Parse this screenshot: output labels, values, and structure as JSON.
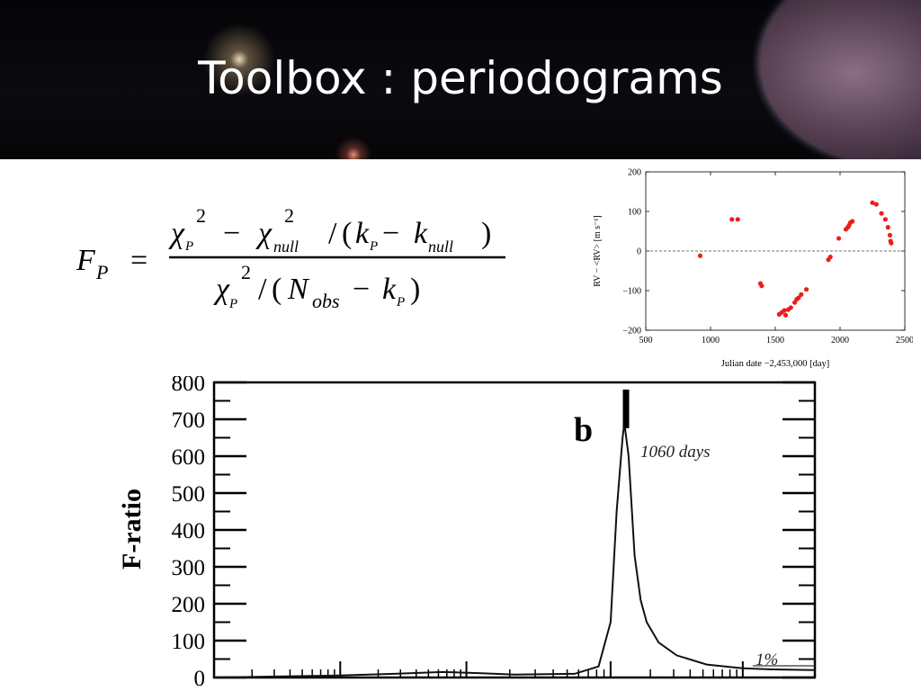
{
  "slide": {
    "title": "Toolbox : periodograms"
  },
  "formula": {
    "lhs_main": "F",
    "lhs_sub": "P",
    "eq": "=",
    "chi": "χ",
    "sq": "2",
    "sub_p": "P",
    "sub_null": "null",
    "minus": "−",
    "slash": "/",
    "lparen": "(",
    "rparen": ")",
    "k": "k",
    "N": "N",
    "sub_obs": "obs"
  },
  "chart_data": [
    {
      "type": "scatter",
      "title": "",
      "xlabel": "Julian date −2,453,000 [day]",
      "ylabel": "RV − <RV> [m s⁻¹]",
      "xlim": [
        500,
        2500
      ],
      "ylim": [
        -200,
        200
      ],
      "xticks": [
        "500",
        "1000",
        "1500",
        "2000",
        "2500"
      ],
      "yticks": [
        "−200",
        "−100",
        "0",
        "100",
        "200"
      ],
      "zero_line": "dashed",
      "point_color": "#e8201a",
      "points": [
        [
          920,
          -12
        ],
        [
          1165,
          80
        ],
        [
          1210,
          80
        ],
        [
          1385,
          -82
        ],
        [
          1395,
          -88
        ],
        [
          1530,
          -160
        ],
        [
          1550,
          -155
        ],
        [
          1570,
          -150
        ],
        [
          1580,
          -162
        ],
        [
          1600,
          -148
        ],
        [
          1620,
          -143
        ],
        [
          1650,
          -130
        ],
        [
          1665,
          -122
        ],
        [
          1680,
          -118
        ],
        [
          1700,
          -110
        ],
        [
          1740,
          -97
        ],
        [
          1910,
          -22
        ],
        [
          1925,
          -15
        ],
        [
          1990,
          32
        ],
        [
          2045,
          55
        ],
        [
          2060,
          60
        ],
        [
          2070,
          65
        ],
        [
          2080,
          72
        ],
        [
          2095,
          75
        ],
        [
          2250,
          122
        ],
        [
          2280,
          118
        ],
        [
          2320,
          95
        ],
        [
          2350,
          80
        ],
        [
          2370,
          60
        ],
        [
          2385,
          40
        ],
        [
          2390,
          25
        ],
        [
          2395,
          20
        ]
      ]
    },
    {
      "type": "line",
      "title": "",
      "xlabel": "",
      "ylabel": "F-ratio",
      "ylim": [
        0,
        800
      ],
      "yticks": [
        "0",
        "100",
        "200",
        "300",
        "400",
        "500",
        "600",
        "700",
        "800"
      ],
      "panel_label": "b",
      "peak_label": "1060 days",
      "threshold_label": "1%",
      "line_color": "#111111",
      "x": [
        0,
        0.2,
        0.3,
        0.38,
        0.44,
        0.5,
        0.6,
        0.64,
        0.66,
        0.67,
        0.68,
        0.683,
        0.69,
        0.7,
        0.71,
        0.72,
        0.74,
        0.77,
        0.82,
        0.88,
        0.93,
        1.0
      ],
      "values": [
        0,
        5,
        10,
        15,
        12,
        8,
        10,
        30,
        150,
        450,
        650,
        690,
        600,
        330,
        210,
        150,
        95,
        60,
        35,
        25,
        22,
        20
      ]
    }
  ]
}
